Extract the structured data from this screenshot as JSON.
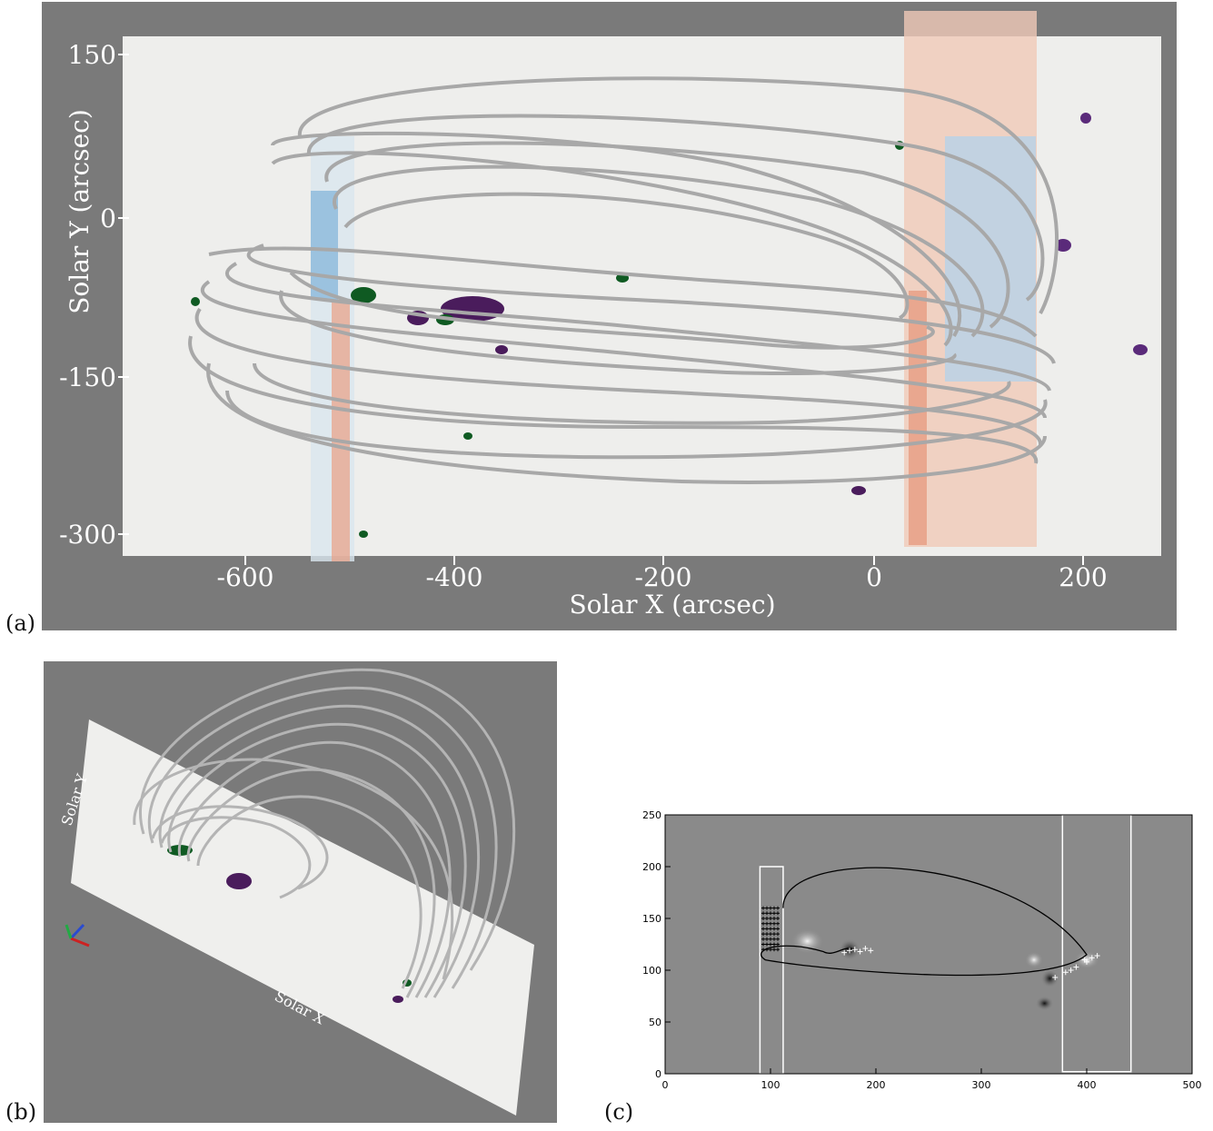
{
  "figure": {
    "panel_a": {
      "label": "(a)",
      "xlabel": "Solar X (arcsec)",
      "ylabel": "Solar Y (arcsec)",
      "xticks": [
        -600,
        -400,
        -200,
        0,
        200
      ],
      "yticks": [
        150,
        0,
        -150,
        -300
      ],
      "xlim": [
        -720,
        275
      ],
      "ylim": [
        -320,
        165
      ]
    },
    "panel_b": {
      "label": "(b)",
      "axis_x_label": "Solar X",
      "axis_y_label": "Solar Y"
    },
    "panel_c": {
      "label": "(c)",
      "xticks": [
        0,
        100,
        200,
        300,
        400,
        500
      ],
      "yticks": [
        0,
        50,
        100,
        150,
        200,
        250
      ],
      "xlim": [
        0,
        500
      ],
      "ylim": [
        0,
        250
      ]
    }
  },
  "chart_data": [
    {
      "type": "scatter",
      "xlabel": "Solar X (arcsec)",
      "ylabel": "Solar Y (arcsec)",
      "xlim": [
        -720,
        275
      ],
      "ylim": [
        -320,
        165
      ],
      "grid": false
    },
    {
      "type": "scatter",
      "xlim": [
        0,
        500
      ],
      "ylim": [
        0,
        250
      ],
      "grid": false,
      "series": [
        {
          "x": [
            100,
            100,
            100,
            100,
            100,
            100,
            100,
            100,
            100
          ],
          "y": [
            120,
            125,
            130,
            135,
            140,
            145,
            150,
            155,
            160
          ]
        },
        {
          "x": [
            170,
            175,
            180,
            185,
            190,
            195
          ],
          "y": [
            117,
            119,
            120,
            118,
            121,
            119
          ]
        },
        {
          "x": [
            370,
            380,
            390,
            400,
            405,
            410,
            398,
            385
          ],
          "y": [
            93,
            98,
            103,
            108,
            112,
            114,
            110,
            100
          ]
        }
      ]
    }
  ]
}
